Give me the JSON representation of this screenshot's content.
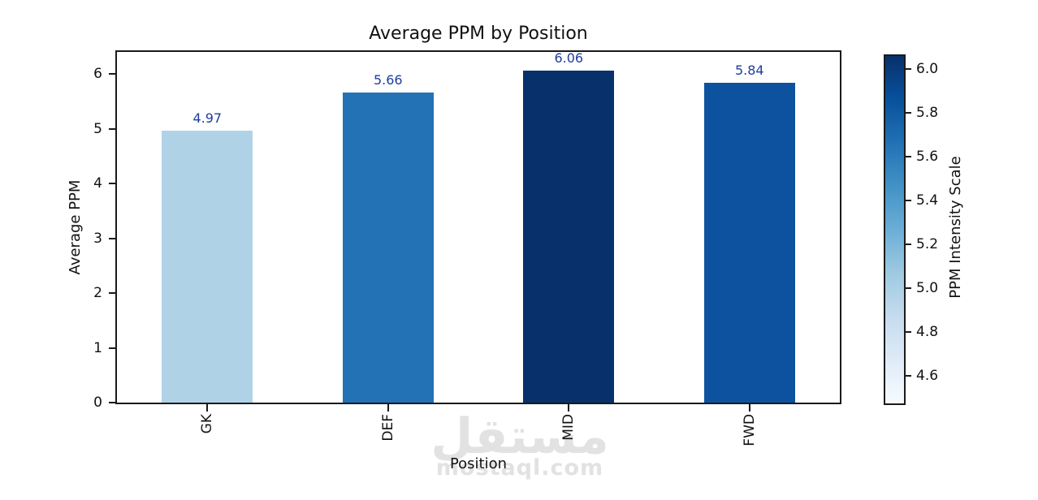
{
  "chart_data": {
    "type": "bar",
    "title": "Average PPM by Position",
    "xlabel": "Position",
    "ylabel": "Average PPM",
    "categories": [
      "GK",
      "DEF",
      "MID",
      "FWD"
    ],
    "values": [
      4.97,
      5.66,
      6.06,
      5.84
    ],
    "value_labels": [
      "4.97",
      "5.66",
      "6.06",
      "5.84"
    ],
    "bar_colors": [
      "#b0d2e7",
      "#2272b5",
      "#08306b",
      "#0d529e"
    ],
    "annotation_color": "#1f3d9c",
    "ylim": [
      0,
      6.4
    ],
    "yticks": [
      0,
      1,
      2,
      3,
      4,
      5,
      6
    ],
    "ytick_labels": [
      "0",
      "1",
      "2",
      "3",
      "4",
      "5",
      "6"
    ],
    "grid": false,
    "colorbar": {
      "label": "PPM Intensity Scale",
      "colormap": "Blues",
      "vmin": 4.473,
      "vmax": 6.06,
      "tick_values": [
        6.0,
        5.8,
        5.6,
        5.4,
        5.2,
        5.0,
        4.8,
        4.6
      ],
      "tick_labels": [
        "6.0",
        "5.8",
        "5.6",
        "5.4",
        "5.2",
        "5.0",
        "4.8",
        "4.6"
      ],
      "gradient_stops": [
        "#f7fbff",
        "#deebf7",
        "#c6dbef",
        "#9ecae1",
        "#6baed6",
        "#4292c6",
        "#2171b5",
        "#08519c",
        "#08306b"
      ]
    }
  },
  "watermark": {
    "text_arabic": "مستقل",
    "text_latin": "mostaql.com",
    "color": "#e2e2e2"
  }
}
